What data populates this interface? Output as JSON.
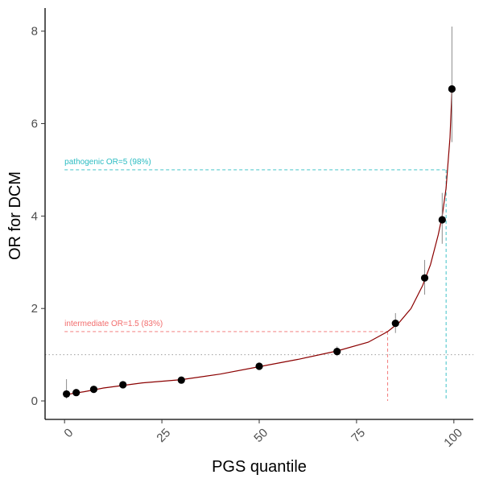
{
  "chart_data": {
    "type": "scatter",
    "xlabel": "PGS quantile",
    "ylabel": "OR for DCM",
    "xlim": [
      -5,
      105
    ],
    "ylim": [
      -0.4,
      8.5
    ],
    "x_ticks": [
      0,
      25,
      50,
      75,
      100
    ],
    "x_tick_labels": [
      "0",
      "25",
      "50",
      "75",
      "100"
    ],
    "y_ticks": [
      0,
      2,
      4,
      6,
      8
    ],
    "y_tick_labels": [
      "0",
      "2",
      "4",
      "6",
      "8"
    ],
    "grid": false,
    "points": [
      {
        "x": 0.5,
        "y": 0.15,
        "lo": 0.05,
        "hi": 0.47
      },
      {
        "x": 3,
        "y": 0.18,
        "lo": 0.12,
        "hi": 0.24
      },
      {
        "x": 7.5,
        "y": 0.25,
        "lo": 0.2,
        "hi": 0.3
      },
      {
        "x": 15,
        "y": 0.35,
        "lo": 0.3,
        "hi": 0.4
      },
      {
        "x": 30,
        "y": 0.45,
        "lo": 0.41,
        "hi": 0.49
      },
      {
        "x": 50,
        "y": 0.75,
        "lo": 0.71,
        "hi": 0.8
      },
      {
        "x": 70,
        "y": 1.07,
        "lo": 0.97,
        "hi": 1.18
      },
      {
        "x": 85,
        "y": 1.68,
        "lo": 1.47,
        "hi": 1.9
      },
      {
        "x": 92.5,
        "y": 2.66,
        "lo": 2.3,
        "hi": 3.05
      },
      {
        "x": 97,
        "y": 3.92,
        "lo": 3.4,
        "hi": 4.5
      },
      {
        "x": 99.5,
        "y": 6.75,
        "lo": 5.6,
        "hi": 8.1
      }
    ],
    "fit_curve": [
      [
        0,
        0.12
      ],
      [
        2,
        0.16
      ],
      [
        5,
        0.2
      ],
      [
        10,
        0.28
      ],
      [
        20,
        0.39
      ],
      [
        30,
        0.46
      ],
      [
        40,
        0.58
      ],
      [
        50,
        0.74
      ],
      [
        60,
        0.9
      ],
      [
        70,
        1.08
      ],
      [
        78,
        1.27
      ],
      [
        83,
        1.5
      ],
      [
        86,
        1.7
      ],
      [
        89,
        2.0
      ],
      [
        92,
        2.5
      ],
      [
        94,
        2.95
      ],
      [
        96,
        3.6
      ],
      [
        97,
        4.0
      ],
      [
        98,
        4.6
      ],
      [
        99,
        5.7
      ],
      [
        99.5,
        6.7
      ]
    ],
    "reference_lines": [
      {
        "y": 1,
        "color": "#9e9e9e",
        "style": "dotted"
      }
    ],
    "thresholds": [
      {
        "label": "intermediate OR=1.5 (83%)",
        "y": 1.5,
        "x": 83,
        "color": "#f26c6c"
      },
      {
        "label": "pathogenic OR=5 (98%)",
        "y": 5,
        "x": 98,
        "color": "#2bbcc2"
      }
    ],
    "colors": {
      "points": "#000000",
      "fit_curve": "#8b0000",
      "error_bars": "#8c8c8c"
    }
  }
}
